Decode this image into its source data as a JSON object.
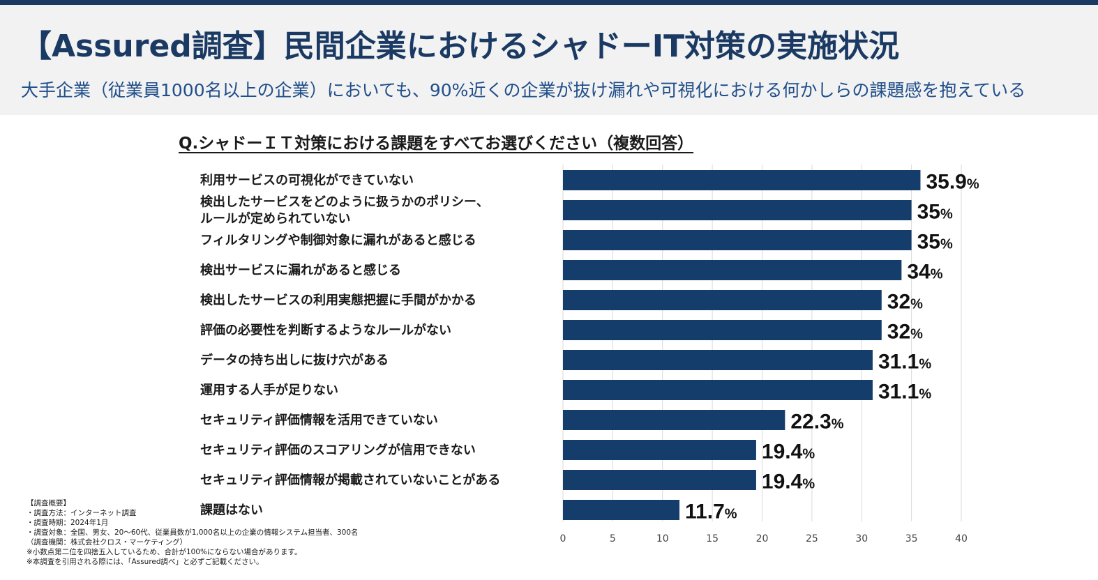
{
  "header": {
    "title": "【Assured調査】民間企業におけるシャドーIT対策の実施状況",
    "subtitle": "大手企業（従業員1000名以上の企業）においても、90%近くの企業が抜け漏れや可視化における何かしらの課題感を抱えている"
  },
  "question": "Q.シャドーＩＴ対策における課題をすべてお選びください（複数回答）",
  "colors": {
    "bar": "#143d6b",
    "header_text": "#1b3a63",
    "subtitle_text": "#1f4e8a",
    "grid": "#d9d9d9"
  },
  "chart_data": {
    "type": "bar",
    "orientation": "horizontal",
    "categories": [
      [
        "利用サービスの可視化ができていない"
      ],
      [
        "検出したサービスをどのように扱うかのポリシー、",
        "ルールが定められていない"
      ],
      [
        "フィルタリングや制御対象に漏れがあると感じる"
      ],
      [
        "検出サービスに漏れがあると感じる"
      ],
      [
        "検出したサービスの利用実態把握に手間がかかる"
      ],
      [
        "評価の必要性を判断するようなルールがない"
      ],
      [
        "データの持ち出しに抜け穴がある"
      ],
      [
        "運用する人手が足りない"
      ],
      [
        "セキュリティ評価情報を活用できていない"
      ],
      [
        "セキュリティ評価のスコアリングが信用できない"
      ],
      [
        "セキュリティ評価情報が掲載されていないことがある"
      ],
      [
        "課題はない"
      ]
    ],
    "values": [
      35.9,
      35,
      35,
      34,
      32,
      32,
      31.1,
      31.1,
      22.3,
      19.4,
      19.4,
      11.7
    ],
    "value_labels": [
      "35.9",
      "35",
      "35",
      "34",
      "32",
      "32",
      "31.1",
      "31.1",
      "22.3",
      "19.4",
      "19.4",
      "11.7"
    ],
    "value_unit": "%",
    "xlim": [
      0,
      40
    ],
    "xticks": [
      0,
      5,
      10,
      15,
      20,
      25,
      30,
      35,
      40
    ],
    "grid": true
  },
  "notes": [
    "【調査概要】",
    "・調査方法：インターネット調査",
    "・調査時期：2024年1月",
    "・調査対象：全国、男女、20～60代、従業員数が1,000名以上の企業の情報システム担当者、300名",
    "（調査機関：株式会社クロス・マーケティング）",
    "※小数点第二位を四捨五入しているため、合計が100%にならない場合があります。",
    "※本調査を引用される際には、「Assured調べ」と必ずご記載ください。"
  ]
}
